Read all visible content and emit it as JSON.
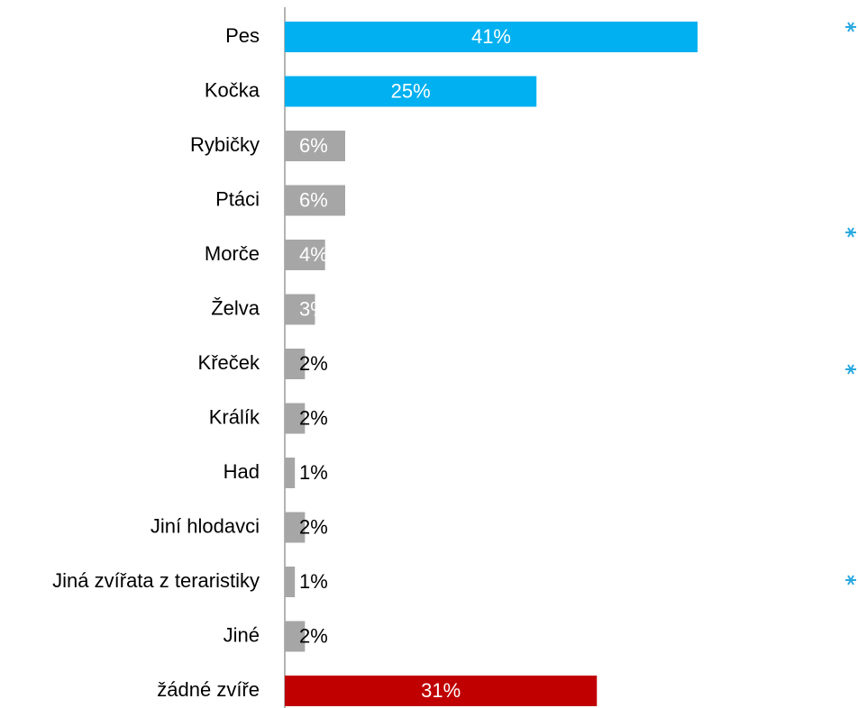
{
  "chart_data": {
    "type": "bar",
    "orientation": "horizontal",
    "categories": [
      "Pes",
      "Kočka",
      "Rybičky",
      "Ptáci",
      "Morče",
      "Želva",
      "Křeček",
      "Králík",
      "Had",
      "Jiní hlodavci",
      "Jiná zvířata z teraristiky",
      "Jiné",
      "žádné zvíře"
    ],
    "values": [
      41,
      25,
      6,
      6,
      4,
      3,
      2,
      2,
      1,
      2,
      1,
      2,
      31
    ],
    "value_labels": [
      "41%",
      "25%",
      "6%",
      "6%",
      "4%",
      "3%",
      "2%",
      "2%",
      "1%",
      "2%",
      "1%",
      "2%",
      "31%"
    ],
    "colors": [
      "#00b0f0",
      "#00b0f0",
      "#a6a6a6",
      "#a6a6a6",
      "#a6a6a6",
      "#a6a6a6",
      "#a6a6a6",
      "#a6a6a6",
      "#a6a6a6",
      "#a6a6a6",
      "#a6a6a6",
      "#a6a6a6",
      "#c00000"
    ]
  }
}
